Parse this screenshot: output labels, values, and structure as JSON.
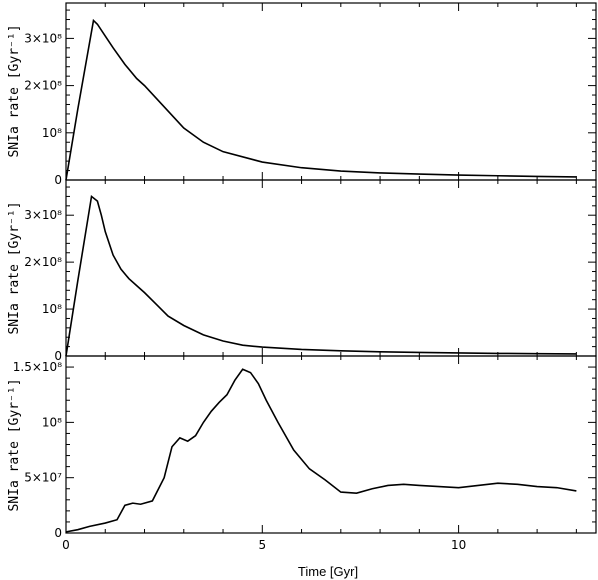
{
  "chart_data": [
    {
      "type": "line",
      "xlim": [
        0,
        13.5
      ],
      "ylim": [
        0,
        375000000.0
      ],
      "ylabel": "SNIa rate [Gyr⁻¹]",
      "yticks": [
        {
          "value": 0,
          "label": "0"
        },
        {
          "value": 100000000.0,
          "label": "10⁸"
        },
        {
          "value": 200000000.0,
          "label": "2×10⁸"
        },
        {
          "value": 300000000.0,
          "label": "3×10⁸"
        }
      ],
      "series": [
        {
          "x": [
            0,
            0.3,
            0.7,
            0.8,
            1.0,
            1.2,
            1.5,
            1.8,
            2.0,
            2.5,
            3.0,
            3.5,
            4.0,
            5.0,
            6.0,
            7.0,
            8.0,
            9.0,
            10.0,
            11.0,
            12.0,
            13.0
          ],
          "y": [
            0,
            150000000.0,
            338000000.0,
            330000000.0,
            305000000.0,
            280000000.0,
            245000000.0,
            215000000.0,
            200000000.0,
            155000000.0,
            110000000.0,
            80000000.0,
            60000000.0,
            38000000.0,
            26000000.0,
            19000000.0,
            15000000.0,
            12500000.0,
            10500000.0,
            9000000.0,
            7500000.0,
            6500000.0
          ]
        }
      ],
      "grid": false
    },
    {
      "type": "line",
      "xlim": [
        0,
        13.5
      ],
      "ylim": [
        0,
        375000000.0
      ],
      "ylabel": "SNIa rate [Gyr⁻¹]",
      "yticks": [
        {
          "value": 0,
          "label": "0"
        },
        {
          "value": 100000000.0,
          "label": "10⁸"
        },
        {
          "value": 200000000.0,
          "label": "2×10⁸"
        },
        {
          "value": 300000000.0,
          "label": "3×10⁸"
        }
      ],
      "series": [
        {
          "x": [
            0,
            0.3,
            0.65,
            0.8,
            0.9,
            1.0,
            1.2,
            1.4,
            1.6,
            1.8,
            2.0,
            2.3,
            2.6,
            3.0,
            3.5,
            4.0,
            4.5,
            5.0,
            6.0,
            7.0,
            8.0,
            9.0,
            10.0,
            11.0,
            12.0,
            13.0
          ],
          "y": [
            0,
            160000000.0,
            340000000.0,
            330000000.0,
            300000000.0,
            265000000.0,
            215000000.0,
            185000000.0,
            165000000.0,
            150000000.0,
            135000000.0,
            110000000.0,
            85000000.0,
            65000000.0,
            45000000.0,
            32000000.0,
            23000000.0,
            19000000.0,
            14000000.0,
            11000000.0,
            9000000.0,
            7500000.0,
            6500000.0,
            5500000.0,
            5000000.0,
            4500000.0
          ]
        }
      ],
      "grid": false
    },
    {
      "type": "line",
      "xlim": [
        0,
        13.5
      ],
      "xlabel": "Time [Gyr]",
      "ylim": [
        0,
        160000000.0
      ],
      "ylabel": "SNIa rate [Gyr⁻¹]",
      "yticks": [
        {
          "value": 0,
          "label": "0"
        },
        {
          "value": 50000000.0,
          "label": "5×10⁷"
        },
        {
          "value": 100000000.0,
          "label": "10⁸"
        },
        {
          "value": 150000000.0,
          "label": "1.5×10⁸"
        }
      ],
      "xticks": [
        {
          "value": 0,
          "label": "0"
        },
        {
          "value": 5,
          "label": "5"
        },
        {
          "value": 10,
          "label": "10"
        }
      ],
      "series": [
        {
          "x": [
            0,
            0.3,
            0.6,
            1.0,
            1.3,
            1.5,
            1.7,
            1.9,
            2.2,
            2.5,
            2.7,
            2.9,
            3.1,
            3.3,
            3.5,
            3.7,
            3.9,
            4.1,
            4.3,
            4.5,
            4.7,
            4.9,
            5.1,
            5.4,
            5.8,
            6.2,
            6.6,
            7.0,
            7.4,
            7.8,
            8.2,
            8.6,
            9.0,
            9.5,
            10.0,
            10.5,
            11.0,
            11.5,
            12.0,
            12.5,
            13.0
          ],
          "y": [
            1000000.0,
            3000000.0,
            6000000.0,
            9000000.0,
            12000000.0,
            25000000.0,
            27000000.0,
            26000000.0,
            29000000.0,
            50000000.0,
            78000000.0,
            86000000.0,
            83000000.0,
            88000000.0,
            100000000.0,
            110000000.0,
            118000000.0,
            125000000.0,
            138000000.0,
            148000000.0,
            145000000.0,
            135000000.0,
            120000000.0,
            100000000.0,
            75000000.0,
            58000000.0,
            48000000.0,
            37000000.0,
            36000000.0,
            40000000.0,
            43000000.0,
            44000000.0,
            43000000.0,
            42000000.0,
            41000000.0,
            43000000.0,
            45000000.0,
            44000000.0,
            42000000.0,
            41000000.0,
            38000000.0
          ]
        }
      ],
      "grid": false
    }
  ]
}
